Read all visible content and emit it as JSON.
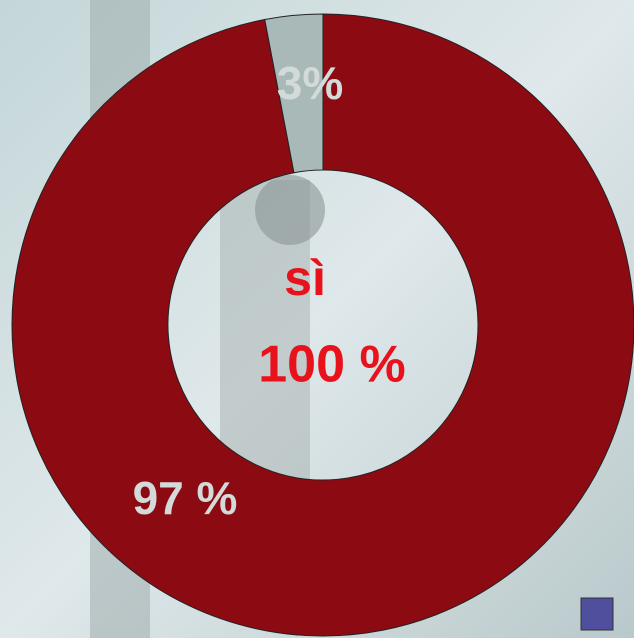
{
  "chart_data": {
    "type": "donut",
    "values": [
      97,
      3
    ],
    "value_labels": [
      "97 %",
      "3%"
    ],
    "colors": [
      "#8c0b13",
      "#a9b9b8"
    ],
    "center_labels": [
      "sì",
      "100 %"
    ]
  }
}
